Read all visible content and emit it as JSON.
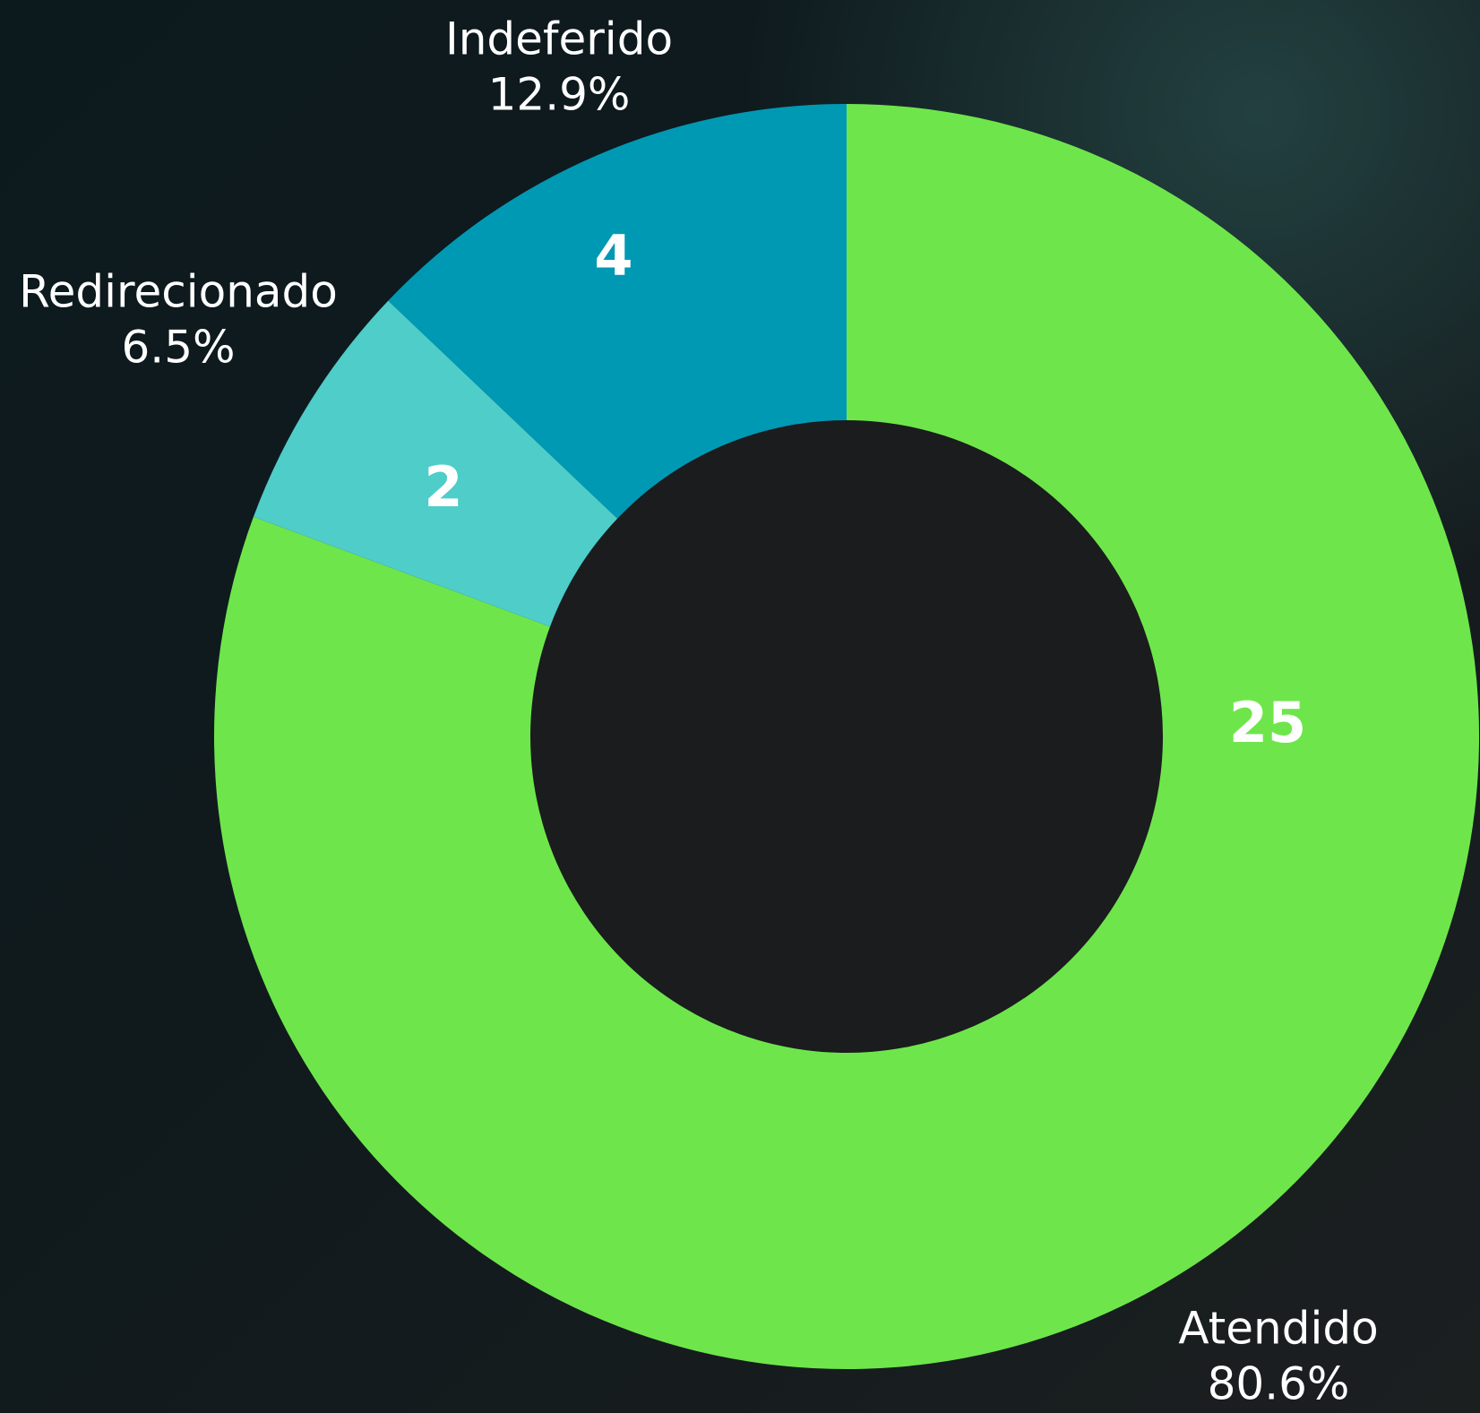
{
  "chart_data": {
    "type": "donut",
    "categories": [
      "Atendido",
      "Redirecionado",
      "Indeferido"
    ],
    "values": [
      25,
      2,
      4
    ],
    "percent_labels": [
      "80.6%",
      "6.5%",
      "12.9%"
    ],
    "colors": [
      "#6ee64b",
      "#4ecdc9",
      "#0099b4"
    ]
  }
}
